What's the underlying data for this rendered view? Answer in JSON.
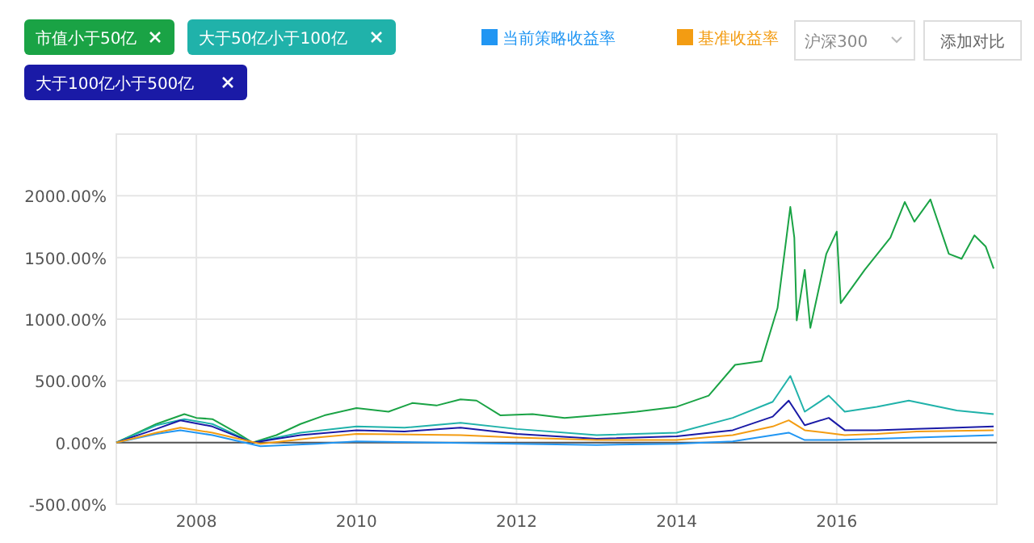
{
  "chart_data": {
    "type": "line",
    "xlim": [
      2007,
      2018
    ],
    "xticks": [
      2008,
      2010,
      2012,
      2014,
      2016
    ],
    "ylim": [
      -500,
      2500
    ],
    "yticks": [
      {
        "value": -500,
        "label": "-500.00%"
      },
      {
        "value": 0,
        "label": "0.00%"
      },
      {
        "value": 500,
        "label": "500.00%"
      },
      {
        "value": 1000,
        "label": "1000.00%"
      },
      {
        "value": 1500,
        "label": "1500.00%"
      },
      {
        "value": 2000,
        "label": "2000.00%"
      }
    ],
    "grid": true,
    "legend": "top",
    "ref_lines": [
      {
        "axis": "y",
        "value": 0,
        "color": "#555555"
      }
    ],
    "annotations": [
      "沪深300",
      "添加对比"
    ],
    "series": [
      {
        "name": "市值小于50亿",
        "color": "#1aa345",
        "x": [
          2007,
          2007.3,
          2007.5,
          2007.85,
          2008,
          2008.2,
          2008.5,
          2008.7,
          2009,
          2009.3,
          2009.6,
          2010,
          2010.4,
          2010.7,
          2011,
          2011.3,
          2011.5,
          2011.8,
          2012.2,
          2012.6,
          2013,
          2013.5,
          2014,
          2014.4,
          2014.73,
          2015.06,
          2015.26,
          2015.42,
          2015.47,
          2015.5,
          2015.6,
          2015.67,
          2015.87,
          2016,
          2016.05,
          2016.35,
          2016.67,
          2016.85,
          2016.97,
          2017.17,
          2017.4,
          2017.56,
          2017.72,
          2017.86,
          2017.96
        ],
        "values": [
          0,
          90,
          150,
          230,
          200,
          190,
          80,
          0,
          60,
          150,
          220,
          280,
          250,
          320,
          300,
          350,
          340,
          220,
          230,
          200,
          220,
          250,
          290,
          380,
          630,
          660,
          1090,
          1910,
          1660,
          990,
          1400,
          930,
          1530,
          1710,
          1130,
          1400,
          1660,
          1950,
          1790,
          1970,
          1530,
          1490,
          1680,
          1590,
          1410
        ]
      },
      {
        "name": "大于50亿小于100亿",
        "color": "#20b2aa",
        "x": [
          2007,
          2007.5,
          2007.85,
          2008.2,
          2008.7,
          2009.3,
          2010,
          2010.6,
          2011.3,
          2012,
          2013,
          2014,
          2014.7,
          2015.2,
          2015.42,
          2015.6,
          2015.9,
          2016.1,
          2016.5,
          2016.9,
          2017.5,
          2017.96
        ],
        "values": [
          0,
          140,
          190,
          150,
          0,
          80,
          130,
          120,
          160,
          110,
          60,
          80,
          200,
          330,
          540,
          250,
          380,
          250,
          290,
          340,
          260,
          230
        ]
      },
      {
        "name": "大于100亿小于500亿",
        "color": "#1a1aa6",
        "x": [
          2007,
          2007.5,
          2007.8,
          2008.2,
          2008.7,
          2009.3,
          2010,
          2010.6,
          2011.3,
          2012,
          2013,
          2014,
          2014.7,
          2015.2,
          2015.4,
          2015.6,
          2015.9,
          2016.1,
          2016.5,
          2017,
          2017.5,
          2017.96
        ],
        "values": [
          0,
          110,
          180,
          130,
          0,
          60,
          100,
          90,
          120,
          70,
          30,
          50,
          100,
          210,
          340,
          140,
          200,
          100,
          100,
          110,
          120,
          130
        ]
      },
      {
        "name": "当前策略收益率",
        "color": "#2196f3",
        "x": [
          2007,
          2007.5,
          2007.8,
          2008.2,
          2008.8,
          2009.5,
          2010,
          2011,
          2012,
          2013,
          2014,
          2014.7,
          2015.4,
          2015.6,
          2016,
          2016.5,
          2017,
          2017.96
        ],
        "values": [
          0,
          70,
          100,
          60,
          -30,
          -10,
          10,
          0,
          -10,
          -20,
          -10,
          10,
          80,
          20,
          20,
          30,
          40,
          60
        ]
      },
      {
        "name": "基准收益率",
        "color": "#f39c12",
        "x": [
          2007,
          2007.5,
          2007.8,
          2008.2,
          2008.8,
          2009.5,
          2010,
          2011.3,
          2012,
          2013,
          2014,
          2014.7,
          2015.2,
          2015.4,
          2015.6,
          2016.1,
          2016.5,
          2017,
          2017.96
        ],
        "values": [
          0,
          80,
          120,
          80,
          -10,
          40,
          70,
          60,
          40,
          20,
          20,
          60,
          130,
          180,
          100,
          60,
          70,
          90,
          100
        ]
      }
    ]
  }
}
